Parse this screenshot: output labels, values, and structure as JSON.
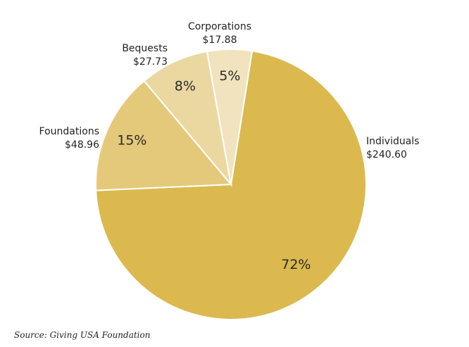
{
  "chart_data": {
    "type": "pie",
    "slices": [
      {
        "label": "Individuals",
        "amount": "$240.60",
        "value": 240.6,
        "percent_label": "72%",
        "color": "#DBB94E"
      },
      {
        "label": "Foundations",
        "amount": "$48.96",
        "value": 48.96,
        "percent_label": "15%",
        "color": "#E4C97A"
      },
      {
        "label": "Bequests",
        "amount": "$27.73",
        "value": 27.73,
        "percent_label": "8%",
        "color": "#EBD8A1"
      },
      {
        "label": "Corporations",
        "amount": "$17.88",
        "value": 17.88,
        "percent_label": "5%",
        "color": "#F1E3BE"
      }
    ],
    "start_angle_deg": 9,
    "direction": "clockwise"
  },
  "source": "Source: Giving USA Foundation"
}
